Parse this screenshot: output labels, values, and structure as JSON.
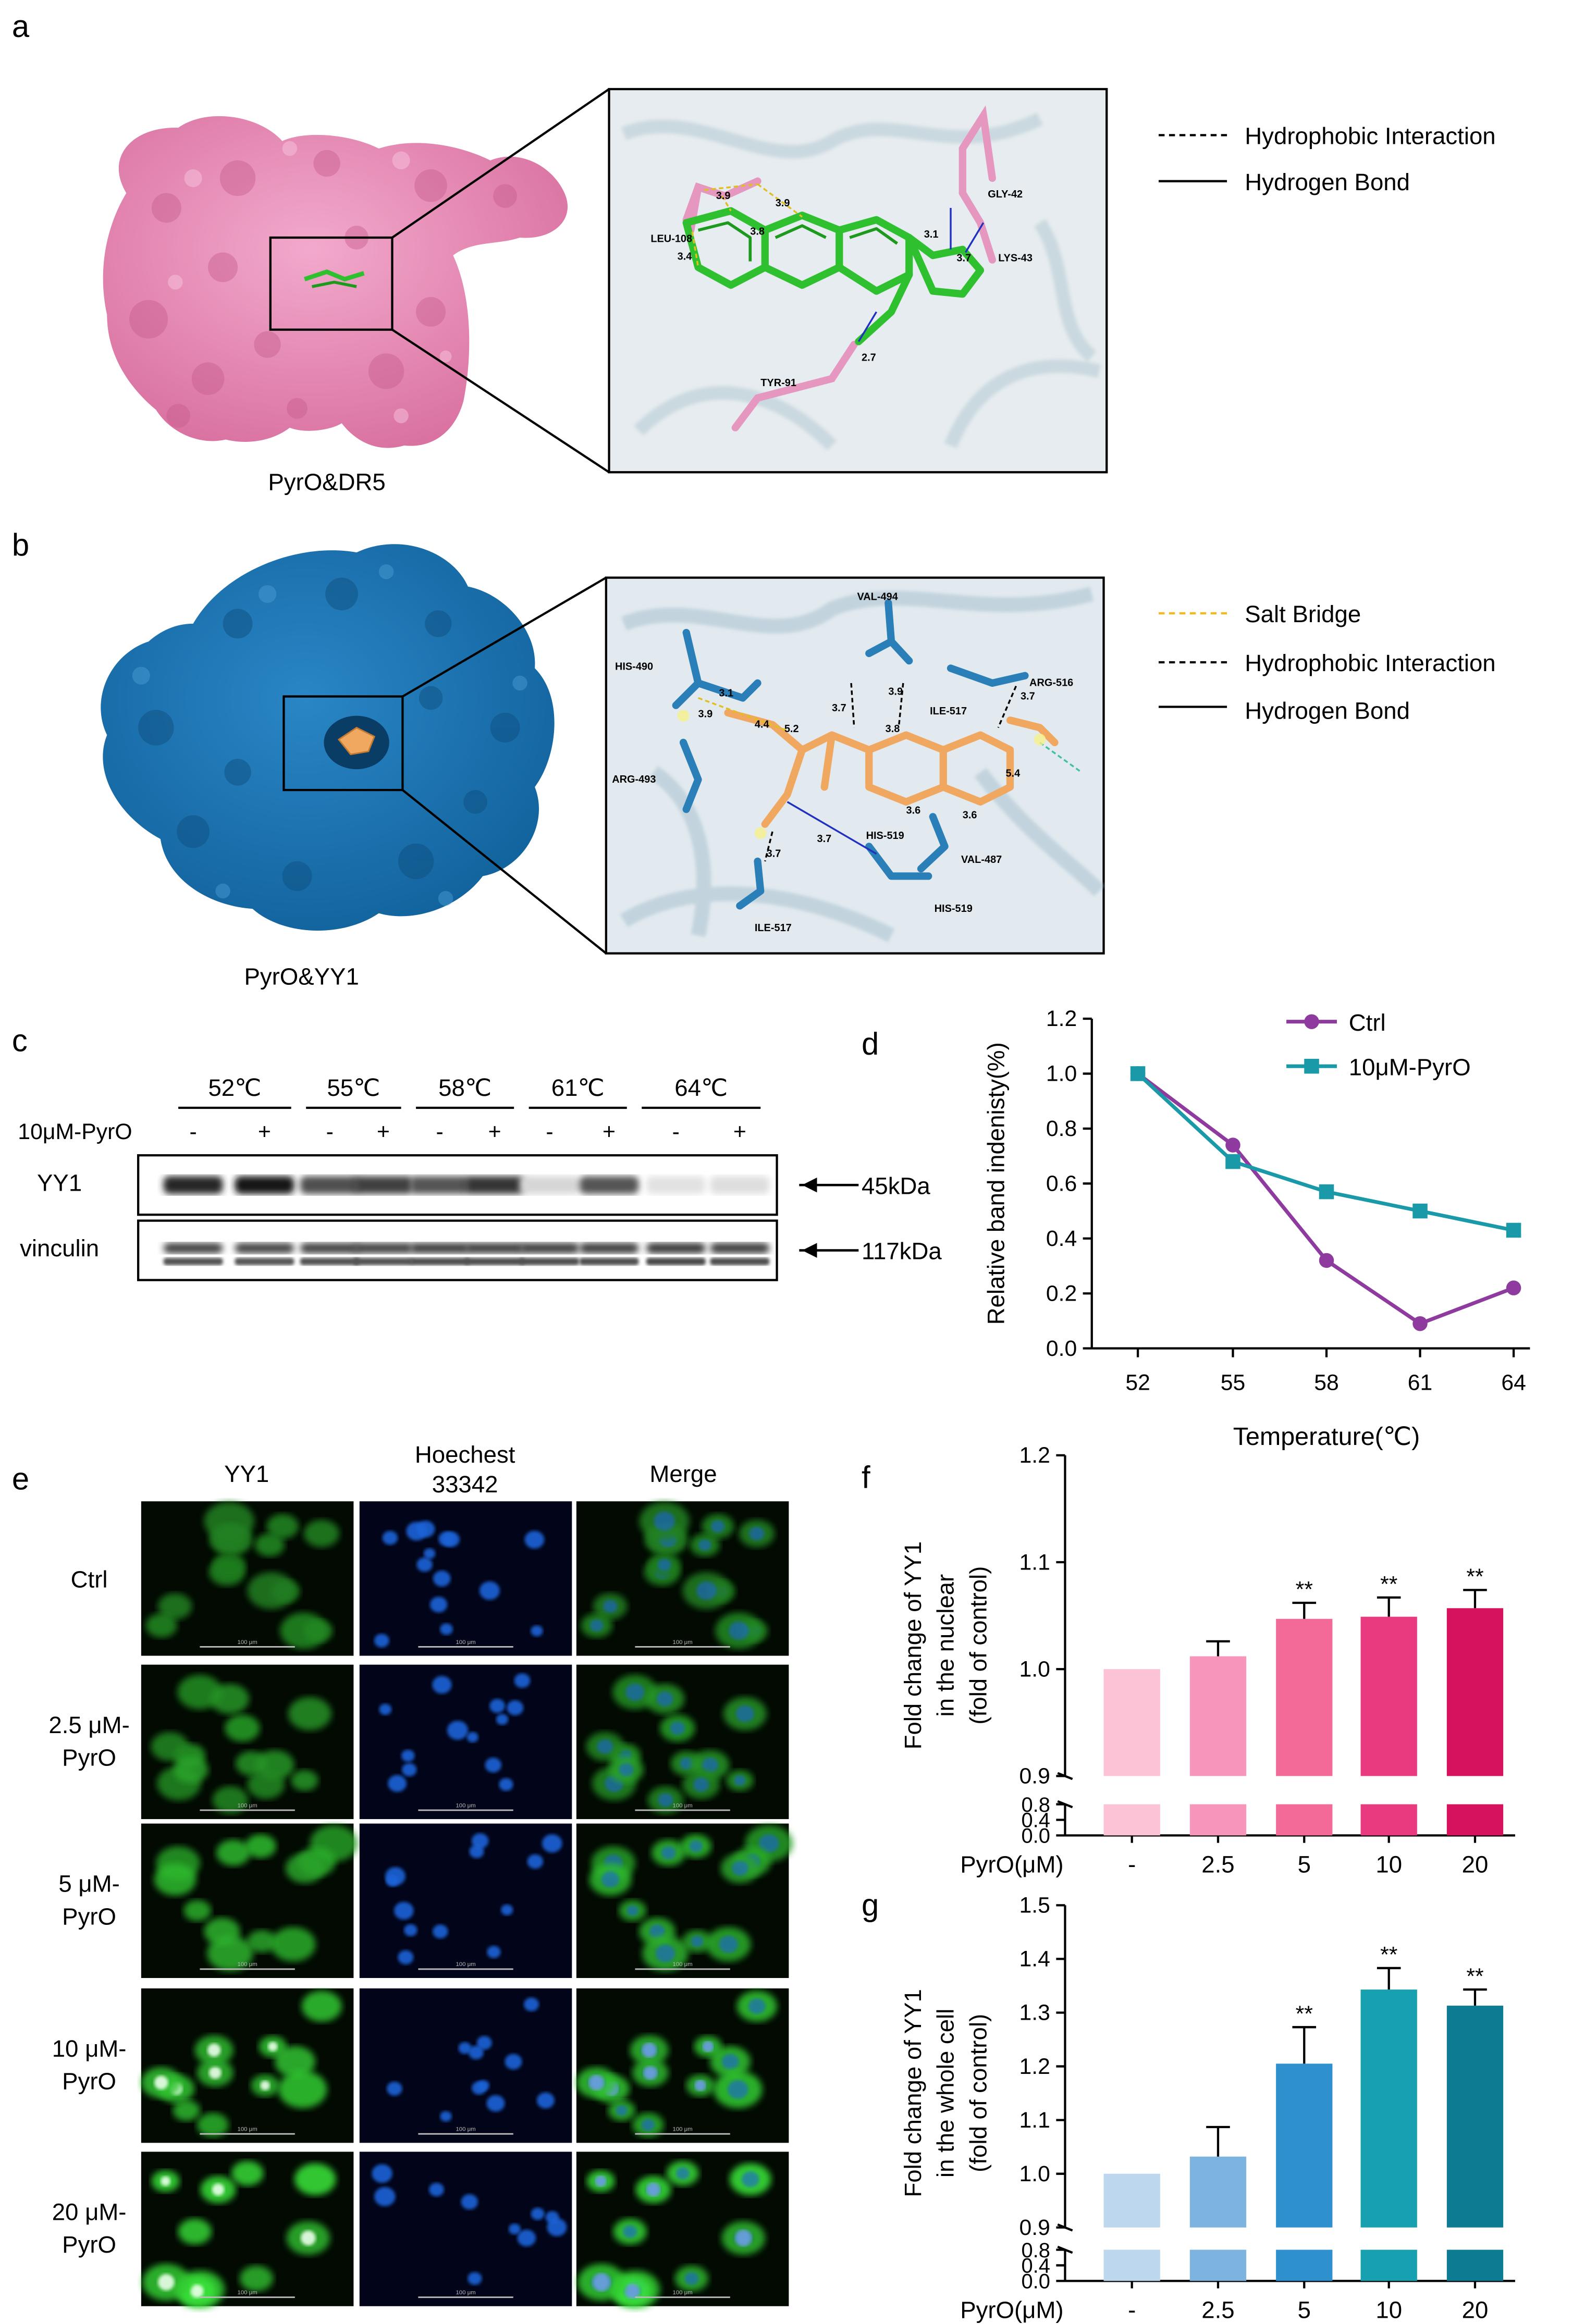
{
  "panel_a": {
    "letter": "a",
    "caption": "PyrO&DR5",
    "legend": [
      {
        "style": "dashed",
        "color": "#000000",
        "label": "Hydrophobic Interaction"
      },
      {
        "style": "solid",
        "color": "#000000",
        "label": "Hydrogen Bond"
      }
    ],
    "residues": [
      "LEU-108",
      "GLY-42",
      "LYS-43",
      "TYR-91"
    ],
    "distances": [
      "3.9",
      "3.9",
      "3.8",
      "3.4",
      "3.1",
      "3.7",
      "2.7"
    ],
    "colors": {
      "protein": "#e07fb0",
      "ligand": "#2ec02e",
      "residue": "#e597bf"
    }
  },
  "panel_b": {
    "letter": "b",
    "caption": "PyrO&YY1",
    "legend": [
      {
        "style": "dashed",
        "color": "#f6b81b",
        "label": "Salt Bridge"
      },
      {
        "style": "dashed",
        "color": "#000000",
        "label": "Hydrophobic Interaction"
      },
      {
        "style": "solid",
        "color": "#000000",
        "label": "Hydrogen Bond"
      }
    ],
    "residues": [
      "VAL-494",
      "HIS-490",
      "ARG-516",
      "ILE-517",
      "ARG-493",
      "HIS-519",
      "VAL-487",
      "ILE-517",
      "HIS-519"
    ],
    "distances": [
      "3.1",
      "3.9",
      "4.4",
      "5.2",
      "3.7",
      "3.9",
      "3.8",
      "3.7",
      "3.6",
      "3.6",
      "5.4",
      "3.7",
      "3.7"
    ],
    "colors": {
      "protein": "#1b70ad",
      "ligand": "#f0a860",
      "residue": "#2a7fb8"
    }
  },
  "panel_c": {
    "letter": "c",
    "temps": [
      "52℃",
      "55℃",
      "58℃",
      "61℃",
      "64℃"
    ],
    "treatment_label": "10μM-PyrO",
    "lane_signs": [
      "-",
      "+",
      "-",
      "+",
      "-",
      "+",
      "-",
      "+",
      "-",
      "+"
    ],
    "rows": [
      {
        "label": "YY1",
        "marker": "45kDa",
        "intensity": [
          0.92,
          1.0,
          0.72,
          0.8,
          0.7,
          0.84,
          0.1,
          0.7,
          0.04,
          0.06
        ]
      },
      {
        "label": "vinculin",
        "marker": "117kDa",
        "intensity": [
          0.8,
          0.78,
          0.8,
          0.8,
          0.82,
          0.82,
          0.82,
          0.82,
          0.84,
          0.82
        ]
      }
    ]
  },
  "panel_d": {
    "letter": "d",
    "chart_data": {
      "type": "line",
      "x": [
        52,
        55,
        58,
        61,
        64
      ],
      "series": [
        {
          "name": "Ctrl",
          "color": "#8e3a9e",
          "marker": "circle",
          "values": [
            1.0,
            0.74,
            0.32,
            0.09,
            0.22
          ]
        },
        {
          "name": "10μM-PyrO",
          "color": "#1a9aa8",
          "marker": "square",
          "values": [
            1.0,
            0.68,
            0.57,
            0.5,
            0.43
          ]
        }
      ],
      "xlabel": "Temperature(℃)",
      "ylabel": "Relative band indenisty(%)",
      "ylim": [
        0,
        1.2
      ],
      "yticks": [
        "0.0",
        "0.2",
        "0.4",
        "0.6",
        "0.8",
        "1.0",
        "1.2"
      ],
      "xticks": [
        "52",
        "55",
        "58",
        "61",
        "64"
      ]
    }
  },
  "panel_e": {
    "letter": "e",
    "columns": [
      "YY1",
      "Hoechest 33342",
      "Merge"
    ],
    "rows": [
      "Ctrl",
      "2.5 μM-PyrO",
      "5 μM-PyrO",
      "10 μM-PyrO",
      "20 μM-PyrO"
    ],
    "scale_bar": "100 μm"
  },
  "panel_f": {
    "letter": "f",
    "chart_data": {
      "type": "bar",
      "categories": [
        "-",
        "2.5",
        "5",
        "10",
        "20"
      ],
      "values": [
        1.0,
        1.012,
        1.047,
        1.049,
        1.057
      ],
      "errors": [
        0,
        0.014,
        0.015,
        0.018,
        0.017
      ],
      "significance": [
        "",
        "",
        "**",
        "**",
        "**"
      ],
      "colors": [
        "#fcc2d6",
        "#f895bb",
        "#f36a98",
        "#ea3a7f",
        "#d6125f"
      ],
      "xlabel": "PyrO(μM)",
      "ylabel": "Fold change of YY1 in the nuclear (fold of control)",
      "ylim_upper": [
        0.9,
        1.2
      ],
      "ylim_lower": [
        0.0,
        0.8
      ],
      "yticks_upper": [
        "0.9",
        "1.0",
        "1.1",
        "1.2"
      ],
      "yticks_lower": [
        "0.0",
        "0.4",
        "0.8"
      ]
    }
  },
  "panel_g": {
    "letter": "g",
    "chart_data": {
      "type": "bar",
      "categories": [
        "-",
        "2.5",
        "5",
        "10",
        "20"
      ],
      "values": [
        1.0,
        1.032,
        1.205,
        1.343,
        1.313
      ],
      "errors": [
        0,
        0.055,
        0.068,
        0.04,
        0.03
      ],
      "significance": [
        "",
        "",
        "**",
        "**",
        "**"
      ],
      "colors": [
        "#bdd7ee",
        "#7cb3df",
        "#2f90cf",
        "#17a0b0",
        "#0d7b92"
      ],
      "xlabel": "PyrO(μM)",
      "ylabel": "Fold change of YY1 in the whole cell (fold of control)",
      "ylim_upper": [
        0.9,
        1.5
      ],
      "ylim_lower": [
        0.0,
        0.8
      ],
      "yticks_upper": [
        "0.9",
        "1.0",
        "1.1",
        "1.2",
        "1.3",
        "1.4",
        "1.5"
      ],
      "yticks_lower": [
        "0.0",
        "0.4",
        "0.8"
      ]
    }
  }
}
